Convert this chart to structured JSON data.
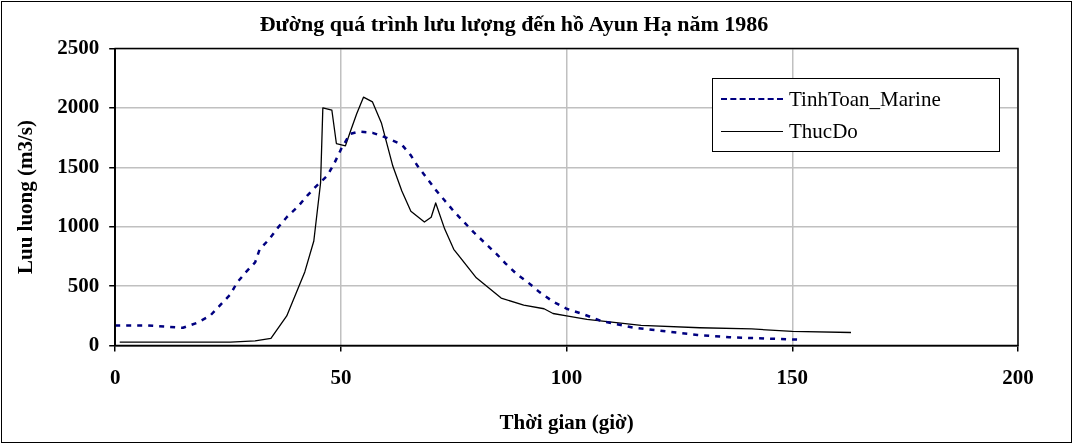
{
  "chart_data": {
    "type": "line",
    "title": "Đường quá trình lưu lượng đến hồ Ayun Hạ năm 1986",
    "xlabel": "Thời gian (giờ)",
    "ylabel": "Luu luong (m3/s)",
    "xlim": [
      0,
      200
    ],
    "xticks": [
      0,
      50,
      100,
      150,
      200
    ],
    "ylim": [
      0,
      2500
    ],
    "yticks": [
      0,
      500,
      1000,
      1500,
      2000,
      2500
    ],
    "grid": true,
    "legend": "top right",
    "marker": "none",
    "series": [
      {
        "name": "TinhToan_Marine",
        "color": "#000080",
        "line_style": "dashed",
        "x": [
          0,
          7,
          15,
          18,
          21,
          23,
          25.5,
          27,
          29,
          31,
          32,
          34,
          36,
          38,
          40.5,
          42.5,
          44.5,
          47,
          48.5,
          50,
          52,
          54,
          57,
          60,
          63.5,
          65.5,
          67,
          69,
          71,
          73,
          75,
          77.5,
          79.5,
          82,
          84.5,
          86.5,
          89,
          91.5,
          94,
          97,
          100,
          104,
          107.5,
          111,
          115,
          122,
          129,
          136,
          144,
          151.5
        ],
        "values": [
          170,
          170,
          150,
          190,
          250,
          330,
          430,
          530,
          620,
          700,
          810,
          890,
          990,
          1080,
          1170,
          1260,
          1340,
          1430,
          1530,
          1650,
          1780,
          1800,
          1790,
          1750,
          1690,
          1600,
          1510,
          1410,
          1310,
          1220,
          1130,
          1030,
          950,
          860,
          770,
          690,
          600,
          530,
          450,
          370,
          310,
          260,
          210,
          180,
          150,
          120,
          90,
          70,
          60,
          50
        ]
      },
      {
        "name": "ThucDo",
        "color": "#000000",
        "line_style": "solid",
        "x": [
          1,
          25.5,
          31,
          34.5,
          38,
          42,
          44,
          45.5,
          46,
          48,
          49,
          51,
          52,
          53.5,
          55,
          57,
          59,
          61.5,
          63.5,
          65.5,
          68.5,
          70,
          71,
          73,
          75,
          80,
          85.5,
          90.5,
          95,
          97,
          100,
          104.5,
          116.5,
          129.5,
          141,
          150,
          163
        ],
        "values": [
          30,
          30,
          40,
          60,
          250,
          620,
          880,
          1370,
          2000,
          1980,
          1700,
          1680,
          1790,
          1950,
          2090,
          2050,
          1870,
          1510,
          1300,
          1130,
          1040,
          1080,
          1200,
          980,
          810,
          570,
          400,
          340,
          310,
          270,
          250,
          220,
          170,
          150,
          140,
          120,
          110
        ]
      }
    ]
  }
}
